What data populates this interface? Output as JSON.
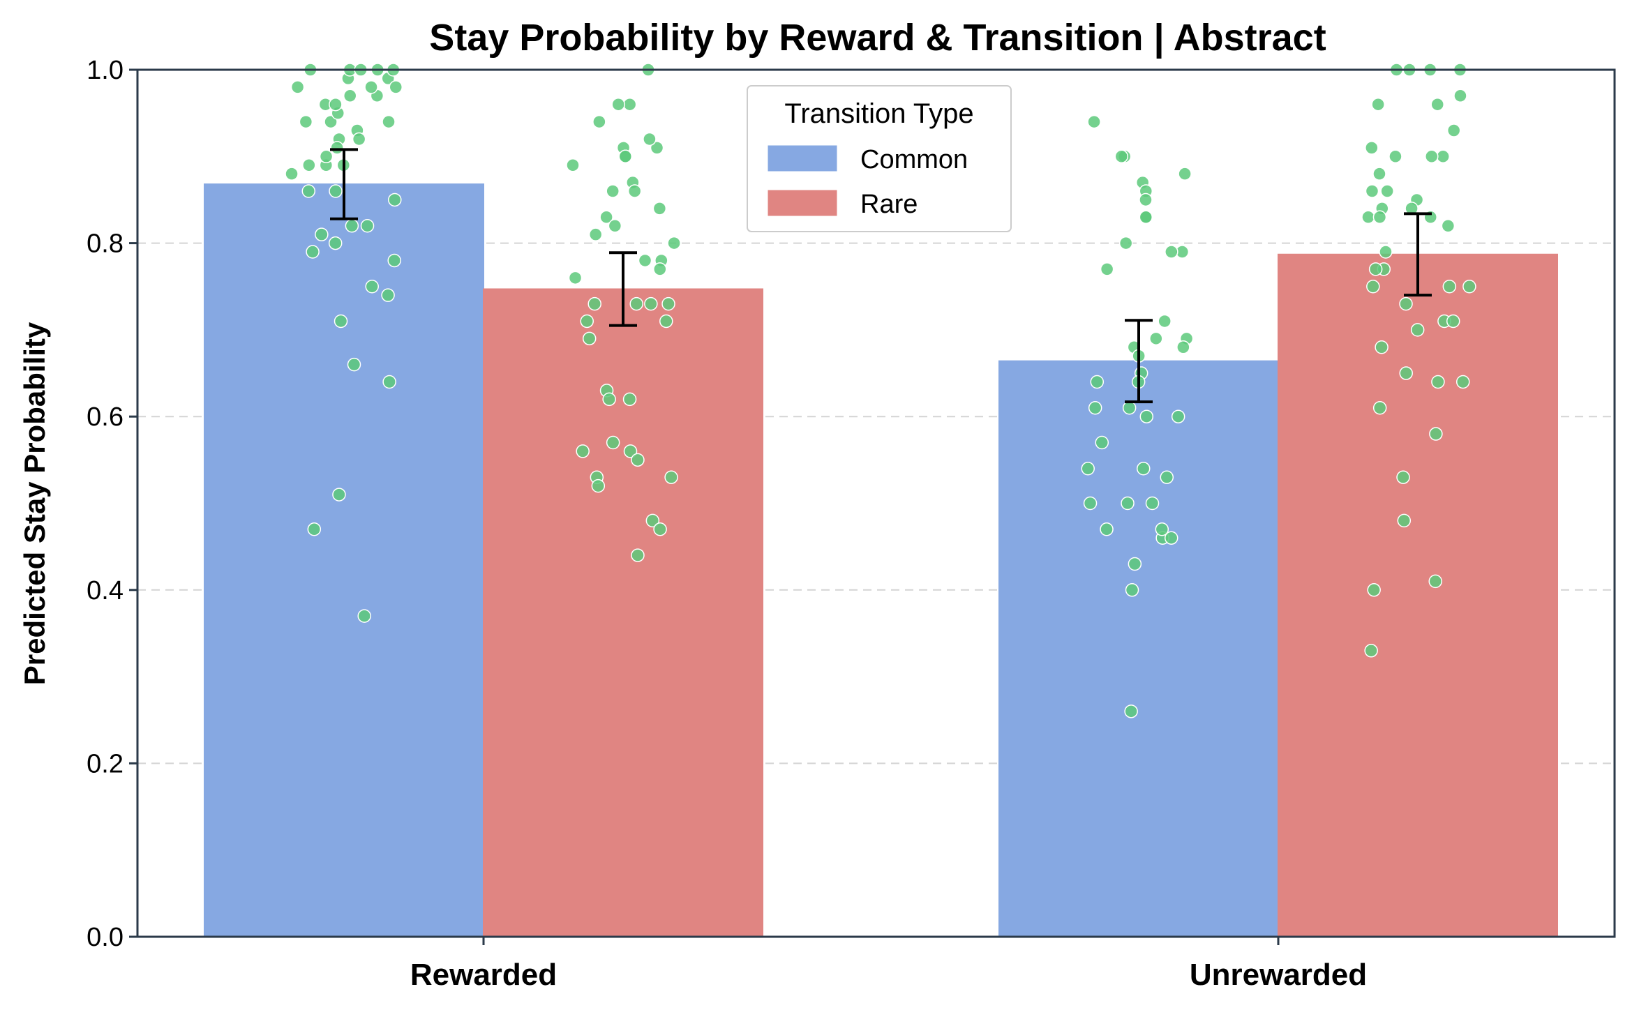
{
  "chart_data": {
    "type": "bar",
    "title": "Stay Probability by Reward & Transition | Abstract",
    "xlabel": "",
    "ylabel": "Predicted Stay Probability",
    "ylim": [
      0,
      1.0
    ],
    "yticks": [
      "0.0",
      "0.2",
      "0.4",
      "0.6",
      "0.8",
      "1.0"
    ],
    "grid": "y-dashed",
    "legend": {
      "title": "Transition Type",
      "placement": "top-center"
    },
    "categories": [
      "Rewarded",
      "Unrewarded"
    ],
    "series": [
      {
        "name": "Common",
        "color": "#86a8e2",
        "values": [
          0.868,
          0.664
        ],
        "errors": [
          0.04,
          0.047
        ]
      },
      {
        "name": "Rare",
        "color": "#e08582",
        "values": [
          0.747,
          0.787
        ],
        "errors": [
          0.042,
          0.047
        ]
      }
    ],
    "points_color": "#5cc97a",
    "points": [
      [
        0.99,
        0.98,
        0.97,
        0.94,
        0.92,
        0.93,
        0.89,
        0.89,
        0.99,
        1.0,
        1.0,
        1.0,
        0.98,
        0.97,
        0.95,
        0.94,
        0.91,
        0.92,
        0.96,
        0.98,
        1.0,
        1.0,
        0.96,
        0.94,
        0.9,
        0.89,
        0.88,
        0.86,
        0.86,
        0.85,
        0.82,
        0.81,
        0.8,
        0.79,
        0.82,
        0.78,
        0.74,
        0.71,
        0.75,
        0.66,
        0.64,
        0.51,
        0.47,
        0.37
      ],
      [
        1.0,
        0.96,
        0.96,
        0.94,
        0.91,
        0.92,
        0.91,
        0.9,
        0.9,
        0.89,
        0.87,
        0.86,
        0.86,
        0.84,
        0.83,
        0.82,
        0.81,
        0.8,
        0.78,
        0.78,
        0.77,
        0.76,
        0.73,
        0.73,
        0.73,
        0.73,
        0.71,
        0.71,
        0.69,
        0.63,
        0.62,
        0.62,
        0.57,
        0.56,
        0.56,
        0.55,
        0.53,
        0.53,
        0.52,
        0.48,
        0.47,
        0.44
      ],
      [
        0.94,
        0.9,
        0.9,
        0.88,
        0.87,
        0.86,
        0.85,
        0.83,
        0.83,
        0.8,
        0.79,
        0.79,
        0.77,
        0.71,
        0.69,
        0.69,
        0.68,
        0.68,
        0.67,
        0.65,
        0.64,
        0.64,
        0.61,
        0.61,
        0.6,
        0.6,
        0.57,
        0.54,
        0.53,
        0.54,
        0.5,
        0.5,
        0.5,
        0.47,
        0.46,
        0.47,
        0.46,
        0.43,
        0.4,
        0.26
      ],
      [
        1.0,
        1.0,
        1.0,
        1.0,
        0.97,
        0.96,
        0.96,
        0.93,
        0.91,
        0.9,
        0.9,
        0.9,
        0.88,
        0.86,
        0.86,
        0.85,
        0.84,
        0.84,
        0.83,
        0.83,
        0.83,
        0.82,
        0.79,
        0.77,
        0.77,
        0.75,
        0.75,
        0.75,
        0.73,
        0.71,
        0.71,
        0.7,
        0.68,
        0.65,
        0.64,
        0.64,
        0.61,
        0.58,
        0.53,
        0.48,
        0.41,
        0.4,
        0.33
      ]
    ]
  }
}
